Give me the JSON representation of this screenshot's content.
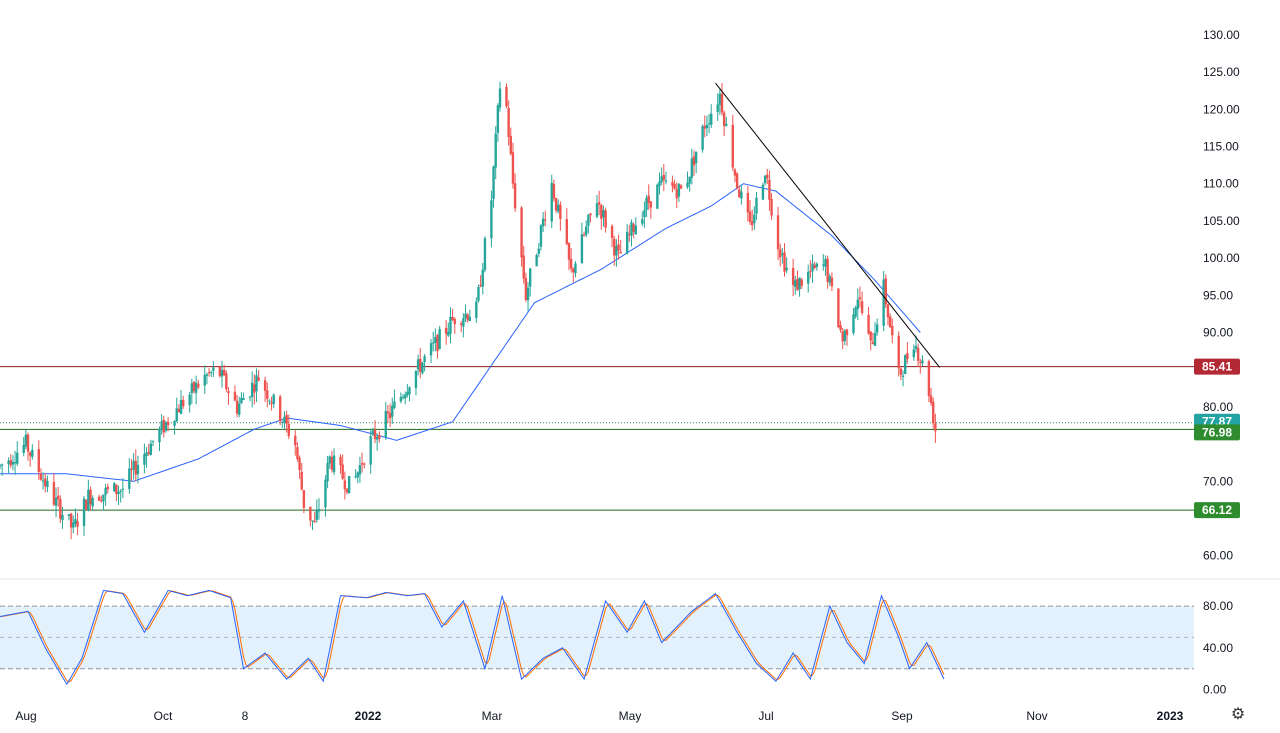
{
  "chart_data": {
    "type": "candlestick",
    "price_axis": {
      "ticks": [
        "130.00",
        "125.00",
        "120.00",
        "115.00",
        "110.00",
        "105.00",
        "100.00",
        "95.00",
        "90.00",
        "80.00",
        "70.00",
        "60.00"
      ],
      "range": [
        57,
        132
      ]
    },
    "time_axis": {
      "labels": [
        "Aug",
        "Oct",
        "8",
        "2022",
        "Mar",
        "May",
        "Jul",
        "Sep",
        "Nov",
        "2023"
      ],
      "start": "2021-07-15",
      "end": "2023-01-20"
    },
    "levels": [
      {
        "label": "85.41",
        "value": 85.41,
        "color": "#b22833",
        "line_color": "#8b1a1a"
      },
      {
        "label": "77.87",
        "value": 77.87,
        "color": "#22a2a2",
        "line_color": "#2a8a5a",
        "dotted": true
      },
      {
        "label": "76.98",
        "value": 76.98,
        "color": "#2e8b2e",
        "line_color": "#1b6b1b"
      },
      {
        "label": "66.12",
        "value": 66.12,
        "color": "#2e8b2e",
        "line_color": "#1b6b1b"
      }
    ],
    "trendline": {
      "from": [
        "2022-06-12",
        123.5
      ],
      "to": [
        "2022-09-24",
        85.3
      ]
    },
    "anchors": [
      [
        "2021-07-15",
        72
      ],
      [
        "2021-07-27",
        75
      ],
      [
        "2021-08-08",
        68
      ],
      [
        "2021-08-18",
        63.5
      ],
      [
        "2021-08-25",
        68
      ],
      [
        "2021-09-10",
        69
      ],
      [
        "2021-09-18",
        73
      ],
      [
        "2021-10-03",
        79
      ],
      [
        "2021-10-18",
        84
      ],
      [
        "2021-10-24",
        85
      ],
      [
        "2021-11-02",
        80
      ],
      [
        "2021-11-12",
        84
      ],
      [
        "2021-11-22",
        79
      ],
      [
        "2021-11-29",
        75
      ],
      [
        "2021-12-03",
        67
      ],
      [
        "2021-12-08",
        64
      ],
      [
        "2021-12-15",
        73
      ],
      [
        "2021-12-25",
        69
      ],
      [
        "2022-01-02",
        75
      ],
      [
        "2022-01-12",
        79
      ],
      [
        "2022-01-22",
        84
      ],
      [
        "2022-02-01",
        88
      ],
      [
        "2022-02-11",
        92
      ],
      [
        "2022-02-21",
        93
      ],
      [
        "2022-02-28",
        108
      ],
      [
        "2022-03-05",
        127
      ],
      [
        "2022-03-10",
        110
      ],
      [
        "2022-03-16",
        95
      ],
      [
        "2022-03-28",
        110
      ],
      [
        "2022-04-06",
        98
      ],
      [
        "2022-04-18",
        108
      ],
      [
        "2022-04-28",
        100
      ],
      [
        "2022-05-08",
        106
      ],
      [
        "2022-05-18",
        110
      ],
      [
        "2022-05-28",
        109
      ],
      [
        "2022-06-07",
        118
      ],
      [
        "2022-06-14",
        122
      ],
      [
        "2022-06-22",
        110
      ],
      [
        "2022-06-28",
        104
      ],
      [
        "2022-07-05",
        112
      ],
      [
        "2022-07-11",
        102
      ],
      [
        "2022-07-18",
        96
      ],
      [
        "2022-07-26",
        98
      ],
      [
        "2022-08-02",
        99
      ],
      [
        "2022-08-10",
        89
      ],
      [
        "2022-08-17",
        95
      ],
      [
        "2022-08-23",
        88
      ],
      [
        "2022-08-29",
        96
      ],
      [
        "2022-09-05",
        84
      ],
      [
        "2022-09-12",
        89
      ],
      [
        "2022-09-18",
        84
      ],
      [
        "2022-09-22",
        77
      ]
    ],
    "ma_anchors": [
      [
        "2021-07-15",
        71
      ],
      [
        "2021-08-15",
        71
      ],
      [
        "2021-09-15",
        70
      ],
      [
        "2021-10-15",
        73
      ],
      [
        "2021-11-10",
        77
      ],
      [
        "2021-11-25",
        78.5
      ],
      [
        "2021-12-20",
        77.5
      ],
      [
        "2022-01-15",
        75.5
      ],
      [
        "2022-02-10",
        78
      ],
      [
        "2022-03-01",
        86
      ],
      [
        "2022-03-20",
        94
      ],
      [
        "2022-04-20",
        98.5
      ],
      [
        "2022-05-20",
        104
      ],
      [
        "2022-06-10",
        107
      ],
      [
        "2022-06-25",
        110
      ],
      [
        "2022-07-10",
        109
      ],
      [
        "2022-08-05",
        103
      ],
      [
        "2022-08-25",
        97
      ],
      [
        "2022-09-15",
        90
      ]
    ],
    "oscillator": {
      "ticks": [
        "80.00",
        "40.00",
        "0.00"
      ],
      "range": [
        -10,
        105
      ],
      "band": [
        20,
        80
      ],
      "mid": 50,
      "anchors": [
        [
          "2021-07-15",
          70
        ],
        [
          "2021-07-28",
          75
        ],
        [
          "2021-08-05",
          40
        ],
        [
          "2021-08-15",
          5
        ],
        [
          "2021-08-22",
          30
        ],
        [
          "2021-09-01",
          95
        ],
        [
          "2021-09-10",
          92
        ],
        [
          "2021-09-20",
          55
        ],
        [
          "2021-10-01",
          95
        ],
        [
          "2021-10-10",
          90
        ],
        [
          "2021-10-20",
          95
        ],
        [
          "2021-10-30",
          88
        ],
        [
          "2021-11-05",
          20
        ],
        [
          "2021-11-15",
          35
        ],
        [
          "2021-11-25",
          10
        ],
        [
          "2021-12-05",
          30
        ],
        [
          "2021-12-12",
          8
        ],
        [
          "2021-12-20",
          90
        ],
        [
          "2022-01-01",
          88
        ],
        [
          "2022-01-10",
          93
        ],
        [
          "2022-01-20",
          90
        ],
        [
          "2022-01-28",
          92
        ],
        [
          "2022-02-05",
          60
        ],
        [
          "2022-02-15",
          85
        ],
        [
          "2022-02-25",
          20
        ],
        [
          "2022-03-05",
          90
        ],
        [
          "2022-03-14",
          10
        ],
        [
          "2022-03-24",
          30
        ],
        [
          "2022-04-02",
          40
        ],
        [
          "2022-04-12",
          10
        ],
        [
          "2022-04-22",
          85
        ],
        [
          "2022-05-02",
          55
        ],
        [
          "2022-05-10",
          85
        ],
        [
          "2022-05-18",
          45
        ],
        [
          "2022-06-01",
          75
        ],
        [
          "2022-06-12",
          92
        ],
        [
          "2022-06-22",
          55
        ],
        [
          "2022-07-01",
          25
        ],
        [
          "2022-07-10",
          8
        ],
        [
          "2022-07-18",
          35
        ],
        [
          "2022-07-26",
          10
        ],
        [
          "2022-08-04",
          80
        ],
        [
          "2022-08-12",
          45
        ],
        [
          "2022-08-20",
          25
        ],
        [
          "2022-08-28",
          90
        ],
        [
          "2022-09-05",
          50
        ],
        [
          "2022-09-10",
          20
        ],
        [
          "2022-09-18",
          45
        ],
        [
          "2022-09-26",
          10
        ]
      ]
    }
  },
  "ui": {
    "settings_icon": "gear-icon",
    "colors": {
      "bull": "#26a69a",
      "bear": "#ef5350",
      "ma": "#2962ff",
      "osc_k": "#2962ff",
      "osc_d": "#ff6d00",
      "band": "#e3f1fc"
    }
  }
}
